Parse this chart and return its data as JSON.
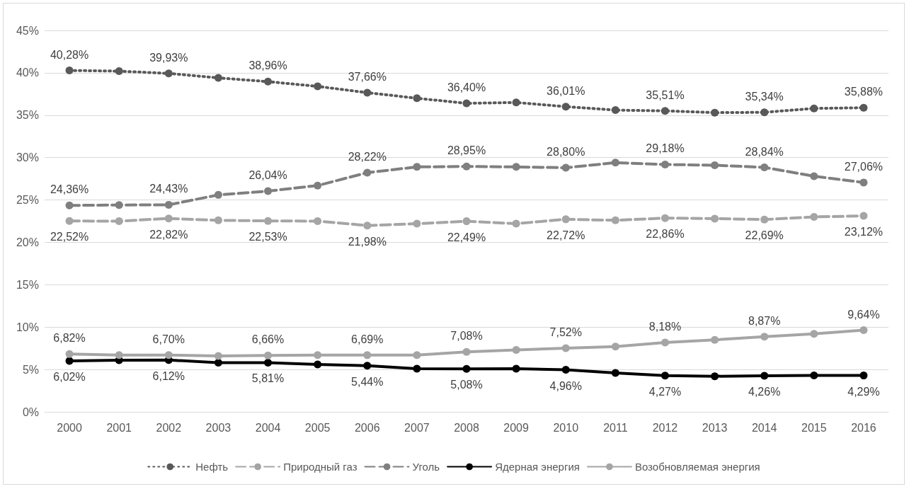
{
  "chart_data": {
    "type": "line",
    "categories": [
      "2000",
      "2001",
      "2002",
      "2003",
      "2004",
      "2005",
      "2006",
      "2007",
      "2008",
      "2009",
      "2010",
      "2011",
      "2012",
      "2013",
      "2014",
      "2015",
      "2016"
    ],
    "series": [
      {
        "name": "Нефть",
        "color": "#595959",
        "line_style": "dotted",
        "values": [
          40.28,
          40.2,
          39.93,
          39.4,
          38.96,
          38.4,
          37.66,
          37.0,
          36.4,
          36.5,
          36.01,
          35.6,
          35.51,
          35.3,
          35.34,
          35.8,
          35.88
        ],
        "value_labels": [
          "40,28%",
          null,
          "39,93%",
          null,
          "38,96%",
          null,
          "37,66%",
          null,
          "36,40%",
          null,
          "36,01%",
          null,
          "35,51%",
          null,
          "35,34%",
          null,
          "35,88%"
        ]
      },
      {
        "name": "Природный газ",
        "color": "#a5a5a5",
        "line_style": "dashed",
        "values": [
          22.52,
          22.5,
          22.82,
          22.6,
          22.53,
          22.5,
          21.98,
          22.2,
          22.49,
          22.2,
          22.72,
          22.6,
          22.86,
          22.8,
          22.69,
          23.0,
          23.12
        ],
        "value_labels": [
          "22,52%",
          null,
          "22,82%",
          null,
          "22,53%",
          null,
          "21,98%",
          null,
          "22,49%",
          null,
          "22,72%",
          null,
          "22,86%",
          null,
          "22,69%",
          null,
          "23,12%"
        ]
      },
      {
        "name": "Уголь",
        "color": "#7f7f7f",
        "line_style": "dashed",
        "values": [
          24.36,
          24.4,
          24.43,
          25.6,
          26.04,
          26.7,
          28.22,
          28.9,
          28.95,
          28.9,
          28.8,
          29.4,
          29.18,
          29.1,
          28.84,
          27.8,
          27.06
        ],
        "value_labels": [
          "24,36%",
          null,
          "24,43%",
          null,
          "26,04%",
          null,
          "28,22%",
          null,
          "28,95%",
          null,
          "28,80%",
          null,
          "29,18%",
          null,
          "28,84%",
          null,
          "27,06%"
        ]
      },
      {
        "name": "Ядерная энергия",
        "color": "#000000",
        "line_style": "solid",
        "values": [
          6.02,
          6.1,
          6.12,
          5.8,
          5.81,
          5.6,
          5.44,
          5.1,
          5.08,
          5.1,
          4.96,
          4.6,
          4.27,
          4.2,
          4.26,
          4.3,
          4.29
        ],
        "value_labels": [
          "6,02%",
          null,
          "6,12%",
          null,
          "5,81%",
          null,
          "5,44%",
          null,
          "5,08%",
          null,
          "4,96%",
          null,
          "4,27%",
          null,
          "4,26%",
          null,
          "4,29%"
        ]
      },
      {
        "name": "Возобновляемая энергия",
        "color": "#a5a5a5",
        "line_style": "solid",
        "values": [
          6.82,
          6.7,
          6.7,
          6.6,
          6.66,
          6.7,
          6.69,
          6.7,
          7.08,
          7.3,
          7.52,
          7.7,
          8.18,
          8.5,
          8.87,
          9.2,
          9.64
        ],
        "value_labels": [
          "6,82%",
          null,
          "6,70%",
          null,
          "6,66%",
          null,
          "6,69%",
          null,
          "7,08%",
          null,
          "7,52%",
          null,
          "8,18%",
          null,
          "8,87%",
          null,
          "9,64%"
        ]
      }
    ],
    "ylim": [
      0,
      45
    ],
    "yticks": [
      {
        "value": 0,
        "label": "0%"
      },
      {
        "value": 5,
        "label": "5%"
      },
      {
        "value": 10,
        "label": "10%"
      },
      {
        "value": 15,
        "label": "15%"
      },
      {
        "value": 20,
        "label": "20%"
      },
      {
        "value": 25,
        "label": "25%"
      },
      {
        "value": 30,
        "label": "30%"
      },
      {
        "value": 35,
        "label": "35%"
      },
      {
        "value": 40,
        "label": "40%"
      },
      {
        "value": 45,
        "label": "45%"
      }
    ],
    "grid": "y",
    "legend": "bottom",
    "marker": "circle"
  }
}
